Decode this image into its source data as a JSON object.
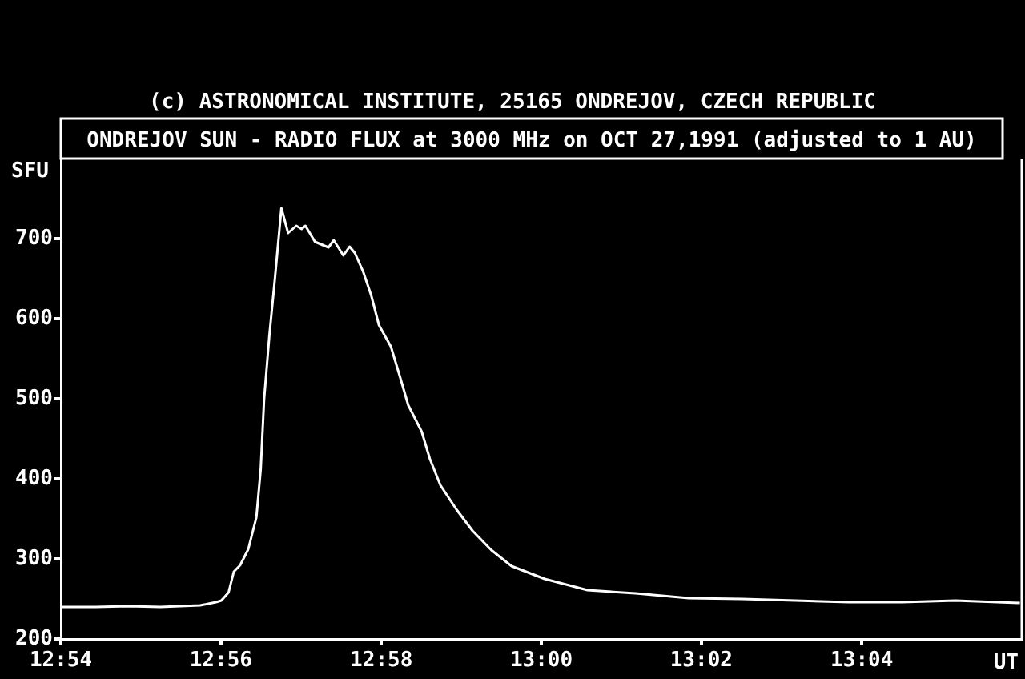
{
  "chart_data": {
    "type": "line",
    "title": "ONDREJOV SUN - RADIO FLUX at 3000 MHz on OCT 27,1991 (adjusted to 1 AU)",
    "annotations": [
      "(c) ASTRONOMICAL INSTITUTE, 25165 ONDREJOV, CZECH REPUBLIC"
    ],
    "xlabel": "UT",
    "ylabel": "SFU",
    "x": [
      12.9,
      12.9073,
      12.914,
      12.9207,
      12.929,
      12.9323,
      12.9334,
      12.9349,
      12.936,
      12.9373,
      12.939,
      12.9407,
      12.9416,
      12.9423,
      12.9434,
      12.9446,
      12.9459,
      12.9473,
      12.949,
      12.9501,
      12.9509,
      12.9529,
      12.9557,
      12.9568,
      12.9588,
      12.9601,
      12.9612,
      12.9629,
      12.9646,
      12.9662,
      12.9687,
      12.9707,
      12.9723,
      12.9751,
      12.9768,
      12.979,
      12.9823,
      12.9857,
      12.9896,
      12.9938,
      13.0007,
      13.0096,
      13.0196,
      13.0307,
      13.0418,
      13.0529,
      13.064,
      13.0751,
      13.0862,
      13.0996
    ],
    "values": [
      240,
      240,
      241,
      240,
      242,
      246,
      248,
      258,
      284,
      292,
      312,
      352,
      412,
      499,
      579,
      653,
      738,
      707,
      716,
      712,
      716,
      696,
      689,
      698,
      679,
      690,
      682,
      659,
      629,
      592,
      565,
      525,
      492,
      459,
      425,
      392,
      362,
      335,
      311,
      291,
      275,
      261,
      257,
      251,
      250,
      248,
      246,
      246,
      248,
      245
    ],
    "color": "#ffffff",
    "marker": "none",
    "line_style": "solid",
    "xlim": [
      12.9,
      13.1
    ],
    "xticks": [
      {
        "value": 12.9,
        "label": "12:54"
      },
      {
        "value": 12.9333,
        "label": "12:56"
      },
      {
        "value": 12.9667,
        "label": "12:58"
      },
      {
        "value": 13,
        "label": "13:00"
      },
      {
        "value": 13.0333,
        "label": "13:02"
      },
      {
        "value": 13.0667,
        "label": "13:04"
      }
    ],
    "ylim": [
      200,
      800
    ],
    "yticks": [
      200,
      300,
      400,
      500,
      600,
      700
    ]
  }
}
